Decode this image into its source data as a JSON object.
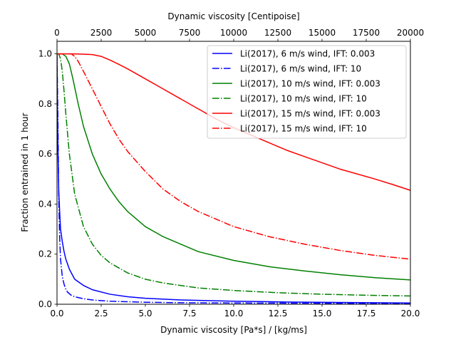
{
  "chart_data": {
    "type": "line",
    "xlabel": "Dynamic viscosity [Pa*s] / [kg/ms]",
    "ylabel": "Fraction entrained in 1 hour",
    "top_xlabel": "Dynamic viscosity [Centipoise]",
    "xlim": [
      0,
      20
    ],
    "ylim": [
      0,
      1.05
    ],
    "top_xlim": [
      0,
      20000
    ],
    "x_ticks": [
      "0.0",
      "2.5",
      "5.0",
      "7.5",
      "10.0",
      "12.5",
      "15.0",
      "17.5",
      "20.0"
    ],
    "x_tick_values": [
      0,
      2.5,
      5,
      7.5,
      10,
      12.5,
      15,
      17.5,
      20
    ],
    "y_ticks": [
      "0.0",
      "0.2",
      "0.4",
      "0.6",
      "0.8",
      "1.0"
    ],
    "y_tick_values": [
      0,
      0.2,
      0.4,
      0.6,
      0.8,
      1.0
    ],
    "top_x_ticks": [
      "0",
      "2500",
      "5000",
      "7500",
      "10000",
      "12500",
      "15000",
      "17500",
      "20000"
    ],
    "top_x_tick_values": [
      0,
      2500,
      5000,
      7500,
      10000,
      12500,
      15000,
      17500,
      20000
    ],
    "legend_position": "top-right",
    "series": [
      {
        "name": "Li(2017), 6 m/s wind, IFT: 0.003",
        "color": "#0000ff",
        "style": "solid",
        "x": [
          0,
          0.02,
          0.05,
          0.1,
          0.15,
          0.2,
          0.3,
          0.4,
          0.5,
          0.7,
          1,
          1.5,
          2,
          3,
          4,
          5,
          7,
          10,
          13,
          16,
          20
        ],
        "y": [
          1.0,
          0.8,
          0.62,
          0.45,
          0.37,
          0.3,
          0.25,
          0.21,
          0.18,
          0.14,
          0.1,
          0.075,
          0.058,
          0.04,
          0.03,
          0.024,
          0.017,
          0.012,
          0.009,
          0.007,
          0.005
        ]
      },
      {
        "name": "Li(2017), 6 m/s wind, IFT: 10",
        "color": "#0000ff",
        "style": "dashdot",
        "x": [
          0,
          0.05,
          0.1,
          0.15,
          0.2,
          0.3,
          0.4,
          0.5,
          0.6,
          0.8,
          1,
          1.5,
          2,
          3,
          5,
          7,
          10,
          15,
          20
        ],
        "y": [
          1.0,
          0.75,
          0.42,
          0.27,
          0.18,
          0.11,
          0.08,
          0.06,
          0.048,
          0.036,
          0.03,
          0.022,
          0.017,
          0.012,
          0.008,
          0.006,
          0.005,
          0.004,
          0.003
        ]
      },
      {
        "name": "Li(2017), 10 m/s wind, IFT: 0.003",
        "color": "#008000",
        "style": "solid",
        "x": [
          0,
          0.3,
          0.5,
          0.7,
          0.9,
          1.2,
          1.5,
          2,
          2.5,
          3,
          3.5,
          4,
          5,
          6,
          7,
          8,
          10,
          12,
          14,
          16,
          18,
          20
        ],
        "y": [
          1.0,
          1.0,
          0.99,
          0.96,
          0.9,
          0.8,
          0.71,
          0.6,
          0.52,
          0.46,
          0.41,
          0.37,
          0.31,
          0.27,
          0.24,
          0.21,
          0.175,
          0.15,
          0.133,
          0.118,
          0.106,
          0.097
        ]
      },
      {
        "name": "Li(2017), 10 m/s wind, IFT: 10",
        "color": "#008000",
        "style": "dashdot",
        "x": [
          0,
          0.1,
          0.2,
          0.3,
          0.4,
          0.5,
          0.7,
          1,
          1.5,
          2,
          2.5,
          3,
          4,
          5,
          6,
          8,
          10,
          12.5,
          15,
          17.5,
          20
        ],
        "y": [
          1.0,
          1.0,
          0.98,
          0.93,
          0.85,
          0.76,
          0.6,
          0.44,
          0.31,
          0.24,
          0.195,
          0.165,
          0.125,
          0.1,
          0.085,
          0.065,
          0.055,
          0.046,
          0.04,
          0.036,
          0.033
        ]
      },
      {
        "name": "Li(2017), 15 m/s wind, IFT: 0.003",
        "color": "#ff0000",
        "style": "solid",
        "x": [
          0,
          1,
          2,
          2.5,
          3,
          3.5,
          4,
          5,
          6,
          7,
          8,
          9,
          10,
          11,
          12,
          13,
          14,
          15,
          16,
          17,
          18,
          19,
          20
        ],
        "y": [
          1.0,
          1.0,
          0.997,
          0.99,
          0.975,
          0.958,
          0.94,
          0.9,
          0.86,
          0.82,
          0.78,
          0.74,
          0.705,
          0.675,
          0.645,
          0.615,
          0.59,
          0.565,
          0.54,
          0.52,
          0.5,
          0.478,
          0.455
        ]
      },
      {
        "name": "Li(2017), 15 m/s wind, IFT: 10",
        "color": "#ff0000",
        "style": "dashdot",
        "x": [
          0,
          0.5,
          0.8,
          1,
          1.2,
          1.5,
          2,
          2.5,
          3,
          3.5,
          4,
          5,
          6,
          7,
          8,
          10,
          12,
          14,
          16,
          18,
          20
        ],
        "y": [
          1.0,
          1.0,
          1.0,
          0.99,
          0.97,
          0.93,
          0.86,
          0.79,
          0.72,
          0.66,
          0.61,
          0.53,
          0.46,
          0.41,
          0.37,
          0.31,
          0.27,
          0.24,
          0.215,
          0.195,
          0.18
        ]
      }
    ]
  }
}
